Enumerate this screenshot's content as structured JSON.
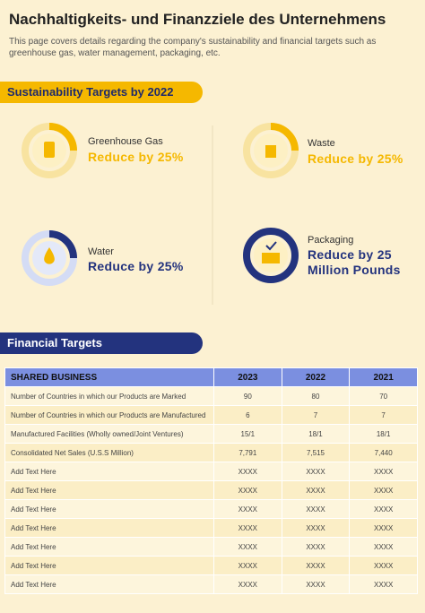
{
  "header": {
    "title": "Nachhaltigkeits- und Finanzziele des Unternehmens",
    "subtitle": "This page covers details regarding the company's sustainability and financial targets such as greenhouse gas, water management, packaging, etc."
  },
  "sustainability": {
    "title": "Sustainability Targets by 2022",
    "targets": [
      {
        "label": "Greenhouse Gas",
        "goal": "Reduce by 25%"
      },
      {
        "label": "Waste",
        "goal": "Reduce by 25%"
      },
      {
        "label": "Water",
        "goal": "Reduce by 25%"
      },
      {
        "label": "Packaging",
        "goal": "Reduce by 25 Million Pounds"
      }
    ]
  },
  "financial": {
    "title": "Financial Targets"
  },
  "table": {
    "header": [
      "SHARED BUSINESS",
      "2023",
      "2022",
      "2021"
    ],
    "rows": [
      [
        "Number of Countries in which our Products are Marked",
        "90",
        "80",
        "70"
      ],
      [
        "Number of Countries in which our Products are Manufactured",
        "6",
        "7",
        "7"
      ],
      [
        "Manufactured Facilities (Wholly owned/Joint Ventures)",
        "15/1",
        "18/1",
        "18/1"
      ],
      [
        "Consolidated Net Sales (U.S.S Million)",
        "7,791",
        "7,515",
        "7,440"
      ],
      [
        "Add Text Here",
        "XXXX",
        "XXXX",
        "XXXX"
      ],
      [
        "Add Text Here",
        "XXXX",
        "XXXX",
        "XXXX"
      ],
      [
        "Add Text Here",
        "XXXX",
        "XXXX",
        "XXXX"
      ],
      [
        "Add Text Here",
        "XXXX",
        "XXXX",
        "XXXX"
      ],
      [
        "Add Text Here",
        "XXXX",
        "XXXX",
        "XXXX"
      ],
      [
        "Add Text Here",
        "XXXX",
        "XXXX",
        "XXXX"
      ],
      [
        "Add Text Here",
        "XXXX",
        "XXXX",
        "XXXX"
      ]
    ]
  }
}
